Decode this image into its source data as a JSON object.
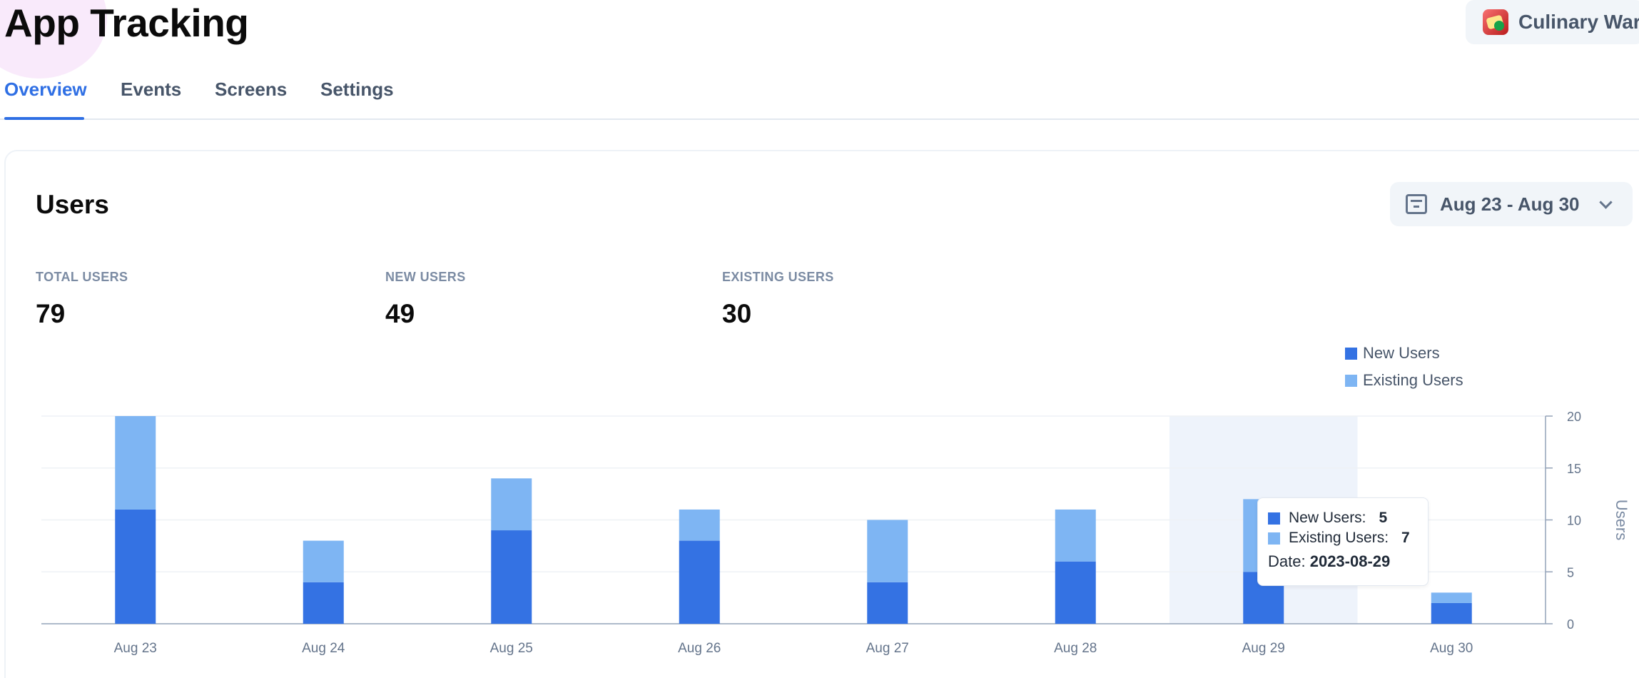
{
  "page": {
    "title": "App Tracking"
  },
  "app_selector": {
    "name": "Culinary War",
    "icon": "app-thumbnail-icon"
  },
  "tabs": [
    {
      "label": "Overview",
      "active": true
    },
    {
      "label": "Events",
      "active": false
    },
    {
      "label": "Screens",
      "active": false
    },
    {
      "label": "Settings",
      "active": false
    }
  ],
  "users_card": {
    "title": "Users",
    "date_range": {
      "label": "Aug 23 - Aug 30",
      "icon": "calendar-icon",
      "chevron": "chevron-down-icon"
    },
    "stats": [
      {
        "label": "TOTAL USERS",
        "value": "79"
      },
      {
        "label": "NEW USERS",
        "value": "49"
      },
      {
        "label": "EXISTING USERS",
        "value": "30"
      }
    ],
    "legend": [
      {
        "label": "New Users",
        "color": "#3472e3"
      },
      {
        "label": "Existing Users",
        "color": "#7eb5f3"
      }
    ],
    "tooltip": {
      "rows": [
        {
          "label": "New Users:",
          "value": "5"
        },
        {
          "label": "Existing Users:",
          "value": "7"
        }
      ],
      "date_label": "Date:",
      "date_value": "2023-08-29"
    }
  },
  "chart_data": {
    "type": "bar",
    "stacked": true,
    "categories": [
      "Aug 23",
      "Aug 24",
      "Aug 25",
      "Aug 26",
      "Aug 27",
      "Aug 28",
      "Aug 29",
      "Aug 30"
    ],
    "series": [
      {
        "name": "New Users",
        "values": [
          11,
          4,
          9,
          8,
          4,
          6,
          5,
          2
        ],
        "color": "#3472e3"
      },
      {
        "name": "Existing Users",
        "values": [
          9,
          4,
          5,
          3,
          6,
          5,
          7,
          1
        ],
        "color": "#7eb5f3"
      }
    ],
    "ylabel": "Users",
    "ylim": [
      0,
      20
    ],
    "yticks": [
      0,
      5,
      10,
      15,
      20
    ],
    "y_axis_side": "right",
    "grid": true,
    "highlighted_category": "Aug 29",
    "legend_position": "top-right"
  }
}
